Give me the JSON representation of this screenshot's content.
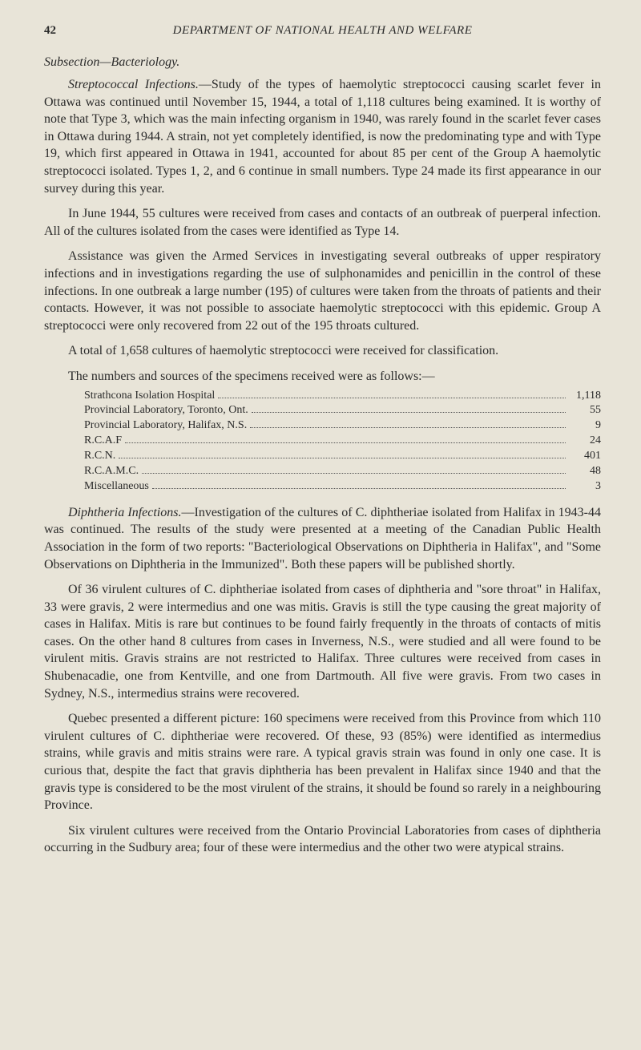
{
  "page": {
    "number": "42",
    "running_head": "DEPARTMENT OF NATIONAL HEALTH AND WELFARE"
  },
  "subsection_heading": "Subsection—Bacteriology.",
  "para1_lead": "Streptococcal Infections.",
  "para1_rest": "—Study of the types of haemolytic streptococci causing scarlet fever in Ottawa was continued until November 15, 1944, a total of 1,118 cultures being examined. It is worthy of note that Type 3, which was the main infecting organism in 1940, was rarely found in the scarlet fever cases in Ottawa during 1944. A strain, not yet completely identified, is now the predominating type and with Type 19, which first appeared in Ottawa in 1941, accounted for about 85 per cent of the Group A haemolytic streptococci isolated. Types 1, 2, and 6 continue in small numbers. Type 24 made its first appearance in our survey during this year.",
  "para2": "In June 1944, 55 cultures were received from cases and contacts of an outbreak of puerperal infection. All of the cultures isolated from the cases were identified as Type 14.",
  "para3": "Assistance was given the Armed Services in investigating several outbreaks of upper respiratory infections and in investigations regarding the use of sulphonamides and penicillin in the control of these infections. In one outbreak a large number (195) of cultures were taken from the throats of patients and their contacts. However, it was not possible to associate haemolytic streptococci with this epidemic. Group A streptococci were only recovered from 22 out of the 195 throats cultured.",
  "para4": "A total of 1,658 cultures of haemolytic streptococci were received for classification.",
  "tally_intro": "The numbers and sources of the specimens received were as follows:—",
  "tally_rows": [
    {
      "label": "Strathcona Isolation Hospital",
      "value": "1,118"
    },
    {
      "label": "Provincial Laboratory, Toronto, Ont.",
      "value": "55"
    },
    {
      "label": "Provincial Laboratory, Halifax, N.S.",
      "value": "9"
    },
    {
      "label": "R.C.A.F",
      "value": "24"
    },
    {
      "label": "R.C.N.",
      "value": "401"
    },
    {
      "label": "R.C.A.M.C.",
      "value": "48"
    },
    {
      "label": "Miscellaneous",
      "value": "3"
    }
  ],
  "para5_lead": "Diphtheria Infections.",
  "para5_rest": "—Investigation of the cultures of C. diphtheriae isolated from Halifax in 1943-44 was continued. The results of the study were presented at a meeting of the Canadian Public Health Association in the form of two reports: \"Bacteriological Observations on Diphtheria in Halifax\", and \"Some Observations on Diphtheria in the Immunized\". Both these papers will be published shortly.",
  "para6": "Of 36 virulent cultures of C. diphtheriae isolated from cases of diphtheria and \"sore throat\" in Halifax, 33 were gravis, 2 were intermedius and one was mitis. Gravis is still the type causing the great majority of cases in Halifax. Mitis is rare but continues to be found fairly frequently in the throats of contacts of mitis cases. On the other hand 8 cultures from cases in Inverness, N.S., were studied and all were found to be virulent mitis. Gravis strains are not restricted to Halifax. Three cultures were received from cases in Shubenacadie, one from Kentville, and one from Dartmouth. All five were gravis. From two cases in Sydney, N.S., intermedius strains were recovered.",
  "para7": "Quebec presented a different picture: 160 specimens were received from this Province from which 110 virulent cultures of C. diphtheriae were recovered. Of these, 93 (85%) were identified as intermedius strains, while gravis and mitis strains were rare. A typical gravis strain was found in only one case. It is curious that, despite the fact that gravis diphtheria has been prevalent in Halifax since 1940 and that the gravis type is considered to be the most virulent of the strains, it should be found so rarely in a neighbouring Province.",
  "para8": "Six virulent cultures were received from the Ontario Provincial Laboratories from cases of diphtheria occurring in the Sudbury area; four of these were intermedius and the other two were atypical strains."
}
